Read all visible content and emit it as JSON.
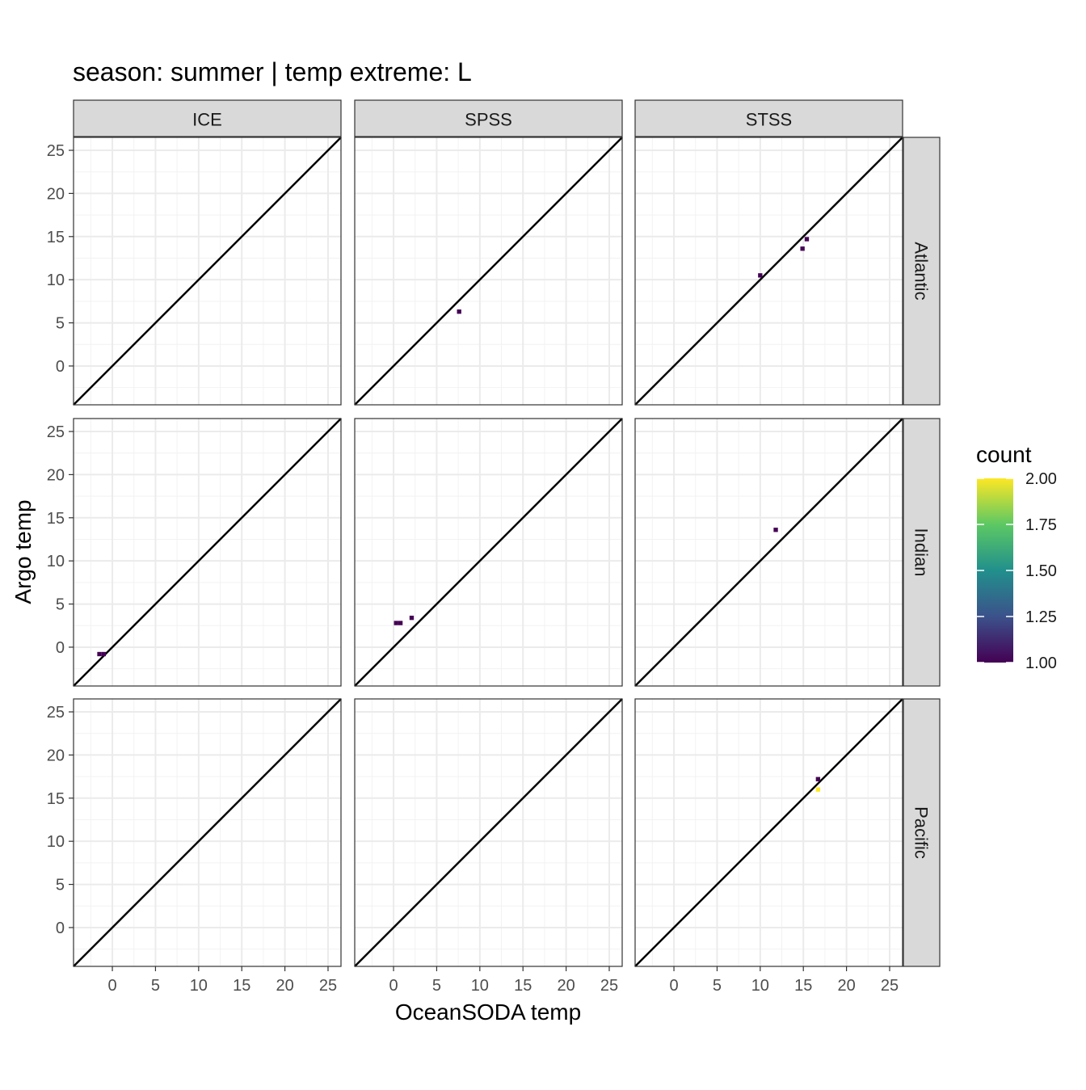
{
  "chart_data": {
    "type": "heatmap",
    "title": "season: summer | temp extreme: L",
    "xlabel": "OceanSODA temp",
    "ylabel": "Argo temp",
    "xlim": [
      -4.5,
      26.5
    ],
    "ylim": [
      -4.5,
      26.5
    ],
    "x_ticks": [
      0,
      5,
      10,
      15,
      20,
      25
    ],
    "y_ticks": [
      0,
      5,
      10,
      15,
      20,
      25
    ],
    "x_tick_labels": [
      "0",
      "5",
      "10",
      "15",
      "20",
      "25"
    ],
    "y_tick_labels": [
      "0",
      "5",
      "10",
      "15",
      "20",
      "25"
    ],
    "grid": true,
    "identity_line": true,
    "bin_width": 0.5,
    "columns": [
      "ICE",
      "SPSS",
      "STSS"
    ],
    "rows": [
      "Atlantic",
      "Indian",
      "Pacific"
    ],
    "legend": {
      "title": "count",
      "position": "right",
      "min": 1.0,
      "max": 2.0,
      "breaks": [
        2.0,
        1.75,
        1.5,
        1.25,
        1.0
      ],
      "break_labels": [
        "2.00",
        "1.75",
        "1.50",
        "1.25",
        "1.00"
      ],
      "colormap": "viridis",
      "colors": [
        "#440154",
        "#3b528b",
        "#21908c",
        "#5dc863",
        "#fde725"
      ]
    },
    "panels": [
      {
        "column": "ICE",
        "row": "Atlantic",
        "cells": []
      },
      {
        "column": "SPSS",
        "row": "Atlantic",
        "cells": [
          {
            "x": 7.6,
            "y": 6.3,
            "count": 1
          }
        ]
      },
      {
        "column": "STSS",
        "row": "Atlantic",
        "cells": [
          {
            "x": 10.0,
            "y": 10.5,
            "count": 1
          },
          {
            "x": 14.9,
            "y": 13.6,
            "count": 1
          },
          {
            "x": 15.4,
            "y": 14.7,
            "count": 1
          }
        ]
      },
      {
        "column": "ICE",
        "row": "Indian",
        "cells": [
          {
            "x": -1.5,
            "y": -0.8,
            "count": 1
          },
          {
            "x": -1.0,
            "y": -0.8,
            "count": 1
          }
        ]
      },
      {
        "column": "SPSS",
        "row": "Indian",
        "cells": [
          {
            "x": 0.3,
            "y": 2.8,
            "count": 1
          },
          {
            "x": 0.8,
            "y": 2.8,
            "count": 1
          },
          {
            "x": 2.1,
            "y": 3.4,
            "count": 1
          }
        ]
      },
      {
        "column": "STSS",
        "row": "Indian",
        "cells": [
          {
            "x": 11.8,
            "y": 13.6,
            "count": 1
          }
        ]
      },
      {
        "column": "ICE",
        "row": "Pacific",
        "cells": []
      },
      {
        "column": "SPSS",
        "row": "Pacific",
        "cells": []
      },
      {
        "column": "STSS",
        "row": "Pacific",
        "cells": [
          {
            "x": 16.7,
            "y": 17.2,
            "count": 1
          },
          {
            "x": 16.7,
            "y": 16.0,
            "count": 2
          }
        ]
      }
    ]
  }
}
